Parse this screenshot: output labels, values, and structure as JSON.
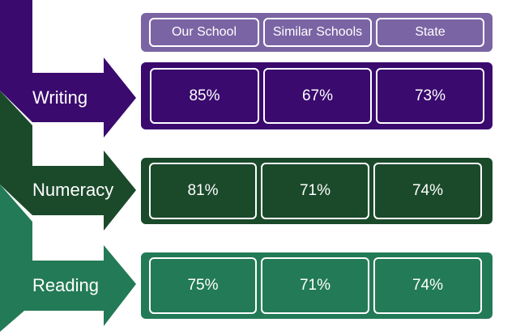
{
  "columns": [
    "Our School",
    "Similar Schools",
    "State"
  ],
  "header_color": "#7a64a4",
  "rows": [
    {
      "label": "Writing",
      "values": [
        "85%",
        "67%",
        "73%"
      ],
      "color": "#3a0a6e"
    },
    {
      "label": "Numeracy",
      "values": [
        "81%",
        "71%",
        "74%"
      ],
      "color": "#1b4a2b"
    },
    {
      "label": "Reading",
      "values": [
        "75%",
        "71%",
        "74%"
      ],
      "color": "#237a56"
    }
  ]
}
